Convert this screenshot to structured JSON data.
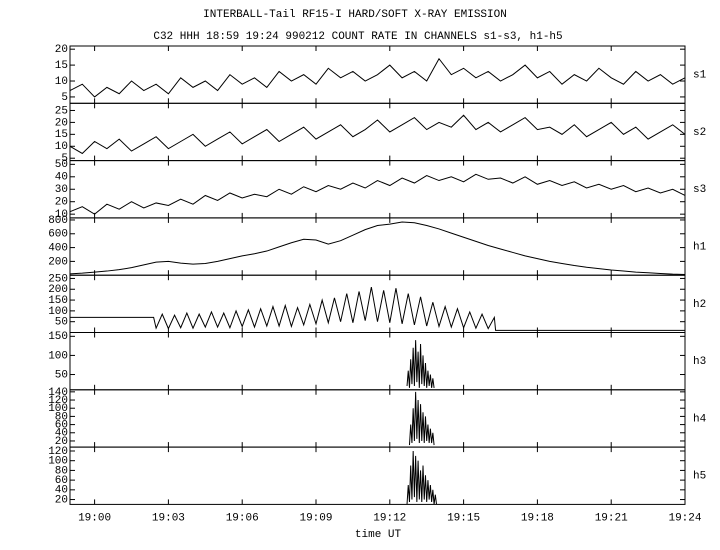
{
  "chart_data": [
    {
      "type": "line",
      "title": "INTERBALL-Tail RF15-I HARD/SOFT X-RAY EMISSION",
      "subtitle": "C32 HHH 18:59 19:24 990212  COUNT RATE IN CHANNELS s1-s3, h1-h5",
      "label": "s1",
      "color": "#000000",
      "x": [
        1139,
        1139.5,
        1140,
        1140.5,
        1141,
        1141.5,
        1142,
        1142.5,
        1143,
        1143.5,
        1144,
        1144.5,
        1145,
        1145.5,
        1146,
        1146.5,
        1147,
        1147.5,
        1148,
        1148.5,
        1149,
        1149.5,
        1150,
        1150.5,
        1151,
        1151.5,
        1152,
        1152.5,
        1153,
        1153.5,
        1154,
        1154.5,
        1155,
        1155.5,
        1156,
        1156.5,
        1157,
        1157.5,
        1158,
        1158.5,
        1159,
        1159.5,
        1160,
        1160.5,
        1161,
        1161.5,
        1162,
        1162.5,
        1163,
        1163.5,
        1164
      ],
      "values": [
        7,
        9,
        5,
        8,
        6,
        10,
        7,
        9,
        6,
        11,
        8,
        10,
        7,
        12,
        9,
        11,
        8,
        13,
        10,
        12,
        9,
        14,
        11,
        13,
        10,
        12,
        15,
        11,
        13,
        10,
        17,
        12,
        14,
        11,
        13,
        10,
        12,
        15,
        11,
        13,
        9,
        12,
        10,
        14,
        11,
        9,
        13,
        10,
        12,
        9,
        11
      ],
      "xlim": [
        1139,
        1164
      ],
      "ylim": [
        3,
        21
      ],
      "yticks": [
        5,
        10,
        15,
        20
      ]
    },
    {
      "type": "line",
      "label": "s2",
      "color": "#000000",
      "x": [
        1139,
        1139.5,
        1140,
        1140.5,
        1141,
        1141.5,
        1142,
        1142.5,
        1143,
        1143.5,
        1144,
        1144.5,
        1145,
        1145.5,
        1146,
        1146.5,
        1147,
        1147.5,
        1148,
        1148.5,
        1149,
        1149.5,
        1150,
        1150.5,
        1151,
        1151.5,
        1152,
        1152.5,
        1153,
        1153.5,
        1154,
        1154.5,
        1155,
        1155.5,
        1156,
        1156.5,
        1157,
        1157.5,
        1158,
        1158.5,
        1159,
        1159.5,
        1160,
        1160.5,
        1161,
        1161.5,
        1162,
        1162.5,
        1163,
        1163.5,
        1164
      ],
      "values": [
        10,
        7,
        12,
        9,
        13,
        8,
        11,
        14,
        9,
        12,
        15,
        10,
        13,
        16,
        11,
        14,
        17,
        12,
        15,
        18,
        13,
        16,
        19,
        14,
        17,
        21,
        16,
        19,
        22,
        17,
        20,
        18,
        23,
        17,
        20,
        16,
        19,
        22,
        17,
        18,
        15,
        19,
        14,
        17,
        20,
        15,
        18,
        13,
        16,
        19,
        15
      ],
      "xlim": [
        1139,
        1164
      ],
      "ylim": [
        4,
        28
      ],
      "yticks": [
        5,
        10,
        15,
        20,
        25
      ]
    },
    {
      "type": "line",
      "label": "s3",
      "color": "#000000",
      "x": [
        1139,
        1139.5,
        1140,
        1140.5,
        1141,
        1141.5,
        1142,
        1142.5,
        1143,
        1143.5,
        1144,
        1144.5,
        1145,
        1145.5,
        1146,
        1146.5,
        1147,
        1147.5,
        1148,
        1148.5,
        1149,
        1149.5,
        1150,
        1150.5,
        1151,
        1151.5,
        1152,
        1152.5,
        1153,
        1153.5,
        1154,
        1154.5,
        1155,
        1155.5,
        1156,
        1156.5,
        1157,
        1157.5,
        1158,
        1158.5,
        1159,
        1159.5,
        1160,
        1160.5,
        1161,
        1161.5,
        1162,
        1162.5,
        1163,
        1163.5,
        1164
      ],
      "values": [
        12,
        16,
        10,
        18,
        14,
        20,
        15,
        19,
        17,
        22,
        18,
        25,
        21,
        27,
        23,
        26,
        24,
        30,
        26,
        32,
        28,
        33,
        30,
        35,
        31,
        37,
        33,
        39,
        35,
        41,
        37,
        40,
        36,
        42,
        38,
        39,
        35,
        40,
        34,
        37,
        33,
        36,
        31,
        34,
        30,
        33,
        28,
        31,
        27,
        30,
        25
      ],
      "xlim": [
        1139,
        1164
      ],
      "ylim": [
        7,
        53
      ],
      "yticks": [
        10,
        20,
        30,
        40,
        50
      ]
    },
    {
      "type": "line",
      "label": "h1",
      "color": "#000000",
      "x": [
        1139,
        1139.5,
        1140,
        1140.5,
        1141,
        1141.5,
        1142,
        1142.5,
        1143,
        1143.5,
        1144,
        1144.5,
        1145,
        1145.5,
        1146,
        1146.5,
        1147,
        1147.5,
        1148,
        1148.5,
        1149,
        1149.5,
        1150,
        1150.5,
        1151,
        1151.5,
        1152,
        1152.5,
        1153,
        1153.5,
        1154,
        1154.5,
        1155,
        1155.5,
        1156,
        1156.5,
        1157,
        1157.5,
        1158,
        1158.5,
        1159,
        1159.5,
        1160,
        1160.5,
        1161,
        1161.5,
        1162,
        1162.5,
        1163,
        1163.5,
        1164
      ],
      "values": [
        20,
        30,
        45,
        60,
        80,
        110,
        150,
        190,
        200,
        175,
        160,
        170,
        200,
        240,
        280,
        310,
        350,
        410,
        470,
        520,
        510,
        450,
        500,
        580,
        660,
        720,
        740,
        770,
        760,
        720,
        670,
        610,
        550,
        490,
        430,
        380,
        330,
        280,
        240,
        200,
        170,
        140,
        115,
        95,
        75,
        60,
        45,
        35,
        25,
        15,
        10
      ],
      "xlim": [
        1139,
        1164
      ],
      "ylim": [
        0,
        830
      ],
      "yticks": [
        200,
        400,
        600,
        800
      ]
    },
    {
      "type": "line",
      "label": "h2",
      "color": "#000000",
      "x": [
        1139,
        1142.4,
        1142.5,
        1142.75,
        1143,
        1143.25,
        1143.5,
        1143.75,
        1144,
        1144.25,
        1144.5,
        1144.75,
        1145,
        1145.25,
        1145.5,
        1145.75,
        1146,
        1146.25,
        1146.5,
        1146.75,
        1147,
        1147.25,
        1147.5,
        1147.75,
        1148,
        1148.25,
        1148.5,
        1148.75,
        1149,
        1149.25,
        1149.5,
        1149.75,
        1150,
        1150.25,
        1150.5,
        1150.75,
        1151,
        1151.25,
        1151.5,
        1151.75,
        1152,
        1152.25,
        1152.5,
        1152.75,
        1153,
        1153.25,
        1153.5,
        1153.75,
        1154,
        1154.25,
        1154.5,
        1154.75,
        1155,
        1155.25,
        1155.5,
        1155.75,
        1156,
        1156.25,
        1156.3,
        1164
      ],
      "values": [
        70,
        70,
        20,
        85,
        18,
        80,
        22,
        90,
        20,
        85,
        25,
        95,
        25,
        90,
        22,
        100,
        28,
        105,
        25,
        110,
        30,
        120,
        30,
        125,
        28,
        115,
        35,
        130,
        40,
        150,
        45,
        160,
        50,
        180,
        45,
        190,
        55,
        210,
        50,
        195,
        45,
        205,
        40,
        180,
        35,
        165,
        30,
        140,
        28,
        120,
        25,
        110,
        22,
        95,
        20,
        85,
        18,
        70,
        10,
        10
      ],
      "xlim": [
        1139,
        1164
      ],
      "ylim": [
        0,
        265
      ],
      "yticks": [
        50,
        100,
        150,
        200,
        250
      ]
    },
    {
      "type": "line",
      "label": "h3",
      "color": "#000000",
      "x": [
        1152.7,
        1152.75,
        1152.8,
        1152.85,
        1152.9,
        1152.95,
        1153,
        1153.05,
        1153.1,
        1153.15,
        1153.2,
        1153.25,
        1153.3,
        1153.35,
        1153.4,
        1153.45,
        1153.5,
        1153.55,
        1153.6,
        1153.65,
        1153.7,
        1153.75,
        1153.8
      ],
      "values": [
        20,
        60,
        15,
        90,
        25,
        120,
        20,
        140,
        30,
        110,
        15,
        130,
        25,
        100,
        20,
        80,
        15,
        60,
        20,
        50,
        15,
        40,
        15
      ],
      "xlim": [
        1139,
        1164
      ],
      "ylim": [
        10,
        160
      ],
      "yticks": [
        50,
        100,
        150
      ]
    },
    {
      "type": "line",
      "label": "h4",
      "color": "#000000",
      "x": [
        1152.8,
        1152.85,
        1152.9,
        1152.95,
        1153,
        1153.05,
        1153.1,
        1153.15,
        1153.2,
        1153.25,
        1153.3,
        1153.35,
        1153.4,
        1153.45,
        1153.5,
        1153.55,
        1153.6,
        1153.65,
        1153.7,
        1153.75,
        1153.8
      ],
      "values": [
        10,
        60,
        15,
        100,
        20,
        140,
        25,
        120,
        15,
        110,
        20,
        90,
        15,
        80,
        20,
        60,
        15,
        50,
        15,
        40,
        10
      ],
      "xlim": [
        1139,
        1164
      ],
      "ylim": [
        5,
        145
      ],
      "yticks": [
        20,
        40,
        60,
        80,
        100,
        120,
        140
      ]
    },
    {
      "type": "line",
      "label": "h5",
      "color": "#000000",
      "xlabel": "time UT",
      "x": [
        1152.7,
        1152.75,
        1152.8,
        1152.85,
        1152.9,
        1152.95,
        1153,
        1153.05,
        1153.1,
        1153.15,
        1153.2,
        1153.25,
        1153.3,
        1153.35,
        1153.4,
        1153.45,
        1153.5,
        1153.55,
        1153.6,
        1153.65,
        1153.7,
        1153.75,
        1153.8,
        1153.85,
        1153.9
      ],
      "values": [
        10,
        50,
        15,
        90,
        20,
        120,
        25,
        110,
        15,
        100,
        20,
        80,
        15,
        90,
        20,
        70,
        15,
        60,
        20,
        50,
        15,
        40,
        10,
        30,
        10
      ],
      "xlim": [
        1139,
        1164
      ],
      "ylim": [
        10,
        128
      ],
      "yticks": [
        20,
        40,
        60,
        80,
        100,
        120
      ],
      "xticks": [
        {
          "value": 1140,
          "label": "19:00"
        },
        {
          "value": 1143,
          "label": "19:03"
        },
        {
          "value": 1146,
          "label": "19:06"
        },
        {
          "value": 1149,
          "label": "19:09"
        },
        {
          "value": 1152,
          "label": "19:12"
        },
        {
          "value": 1155,
          "label": "19:15"
        },
        {
          "value": 1158,
          "label": "19:18"
        },
        {
          "value": 1161,
          "label": "19:21"
        },
        {
          "value": 1164,
          "label": "19:24"
        }
      ]
    }
  ]
}
